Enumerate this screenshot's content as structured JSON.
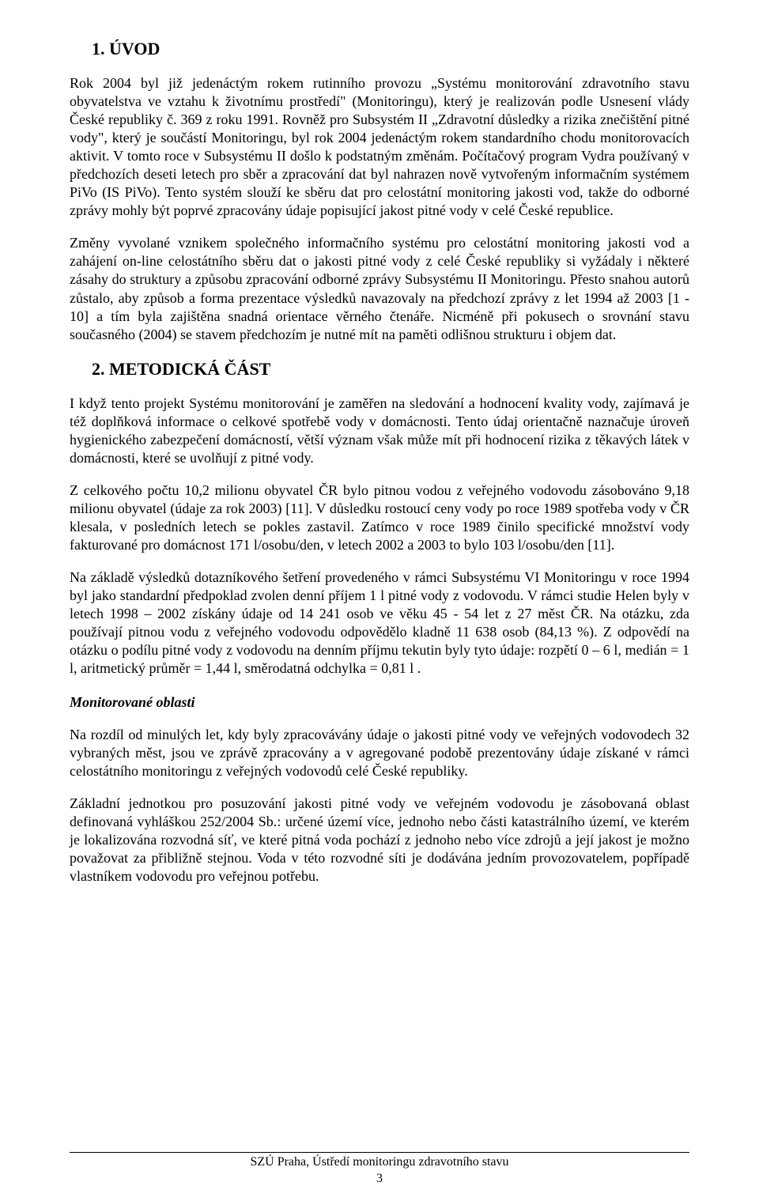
{
  "section1": {
    "heading": "1.  ÚVOD",
    "p1": "Rok 2004 byl již jedenáctým rokem rutinního provozu „Systému monitorování zdravotního stavu obyvatelstva ve vztahu k životnímu prostředí\" (Monitoringu), který je realizován podle Usnesení vlády České republiky č. 369 z roku 1991. Rovněž pro Subsystém II „Zdravotní důsledky a rizika znečištění pitné vody\", který je součástí Monitoringu, byl rok 2004 jedenáctým rokem standardního chodu monitorovacích aktivit. V tomto roce v Subsystému II došlo k podstatným změnám. Počítačový program Vydra používaný v předchozích deseti letech pro sběr a zpracování dat byl nahrazen nově vytvořeným informačním systémem PiVo (IS PiVo). Tento systém slouží ke sběru dat pro celostátní monitoring jakosti vod, takže do odborné zprávy mohly být poprvé zpracovány údaje popisující jakost pitné vody v celé České republice.",
    "p2": "Změny vyvolané vznikem společného informačního systému pro celostátní monitoring jakosti vod a zahájení on-line celostátního sběru dat o jakosti pitné vody z celé České republiky si vyžádaly i některé zásahy do struktury a způsobu zpracování odborné zprávy Subsystému II Monitoringu. Přesto snahou autorů zůstalo,  aby způsob a forma  prezentace výsledků navazovaly na předchozí zprávy z let 1994 až 2003 [1 - 10] a tím byla zajištěna snadná orientace věrného čtenáře. Nicméně při pokusech o srovnání stavu současného (2004) se stavem předchozím je nutné mít na paměti odlišnou strukturu i objem dat."
  },
  "section2": {
    "heading": "2.  METODICKÁ ČÁST",
    "p1": "I když tento projekt Systému monitorování je zaměřen na sledování a hodnocení kvality vody, zajímavá je též doplňková informace o celkové spotřebě vody v domácnosti. Tento údaj orientačně naznačuje úroveň hygienického zabezpečení domácností, větší význam však může mít při hodnocení rizika z těkavých látek v domácnosti, které se uvolňují z pitné vody.",
    "p2": "Z celkového počtu 10,2 milionu obyvatel ČR bylo pitnou vodou z veřejného vodovodu zásobováno  9,18 milionu obyvatel (údaje za rok 2003) [11]. V důsledku rostoucí ceny vody po roce 1989 spotřeba vody v ČR klesala, v posledních  letech se pokles zastavil. Zatímco v roce 1989 činilo specifické množství vody fakturované pro domácnost 171 l/osobu/den, v letech 2002 a 2003 to bylo 103 l/osobu/den [11].",
    "p3": "Na základě výsledků dotazníkového šetření provedeného v rámci Subsystému VI Monitoringu v roce 1994 byl jako standardní předpoklad zvolen denní příjem 1 l pitné vody z vodovodu. V rámci studie Helen byly v letech 1998 – 2002 získány údaje od 14 241 osob ve věku 45 - 54 let z 27 měst ČR. Na otázku, zda používají pitnou vodu z veřejného vodovodu odpovědělo kladně 11 638 osob (84,13 %). Z odpovědí na otázku o podílu pitné vody z vodovodu na denním příjmu tekutin byly tyto údaje: rozpětí 0 – 6 l, medián = 1 l, aritmetický průměr = 1,44 l, směrodatná odchylka = 0,81 l .",
    "sub1_heading": "Monitorované oblasti",
    "sub1_p1": "Na rozdíl od minulých let, kdy byly zpracovávány údaje o jakosti pitné vody ve veřejných vodovodech 32 vybraných měst, jsou ve zprávě zpracovány a v agregované podobě prezentovány údaje získané v rámci celostátního monitoringu z veřejných vodovodů celé České  republiky.",
    "sub1_p2": "Základní jednotkou pro posuzování jakosti pitné vody ve veřejném vodovodu je zásobovaná oblast definovaná vyhláškou 252/2004 Sb.: určené území více, jednoho nebo části katastrálního území, ve kterém je lokalizována rozvodná síť, ve které pitná voda pochází z jednoho nebo více zdrojů a její jakost je možno považovat za přibližně stejnou. Voda v této rozvodné síti je dodávána jedním provozovatelem, popřípadě vlastníkem vodovodu pro veřejnou potřebu."
  },
  "footer": {
    "line1": "SZÚ Praha, Ústředí monitoringu zdravotního stavu",
    "pagenum": "3"
  }
}
